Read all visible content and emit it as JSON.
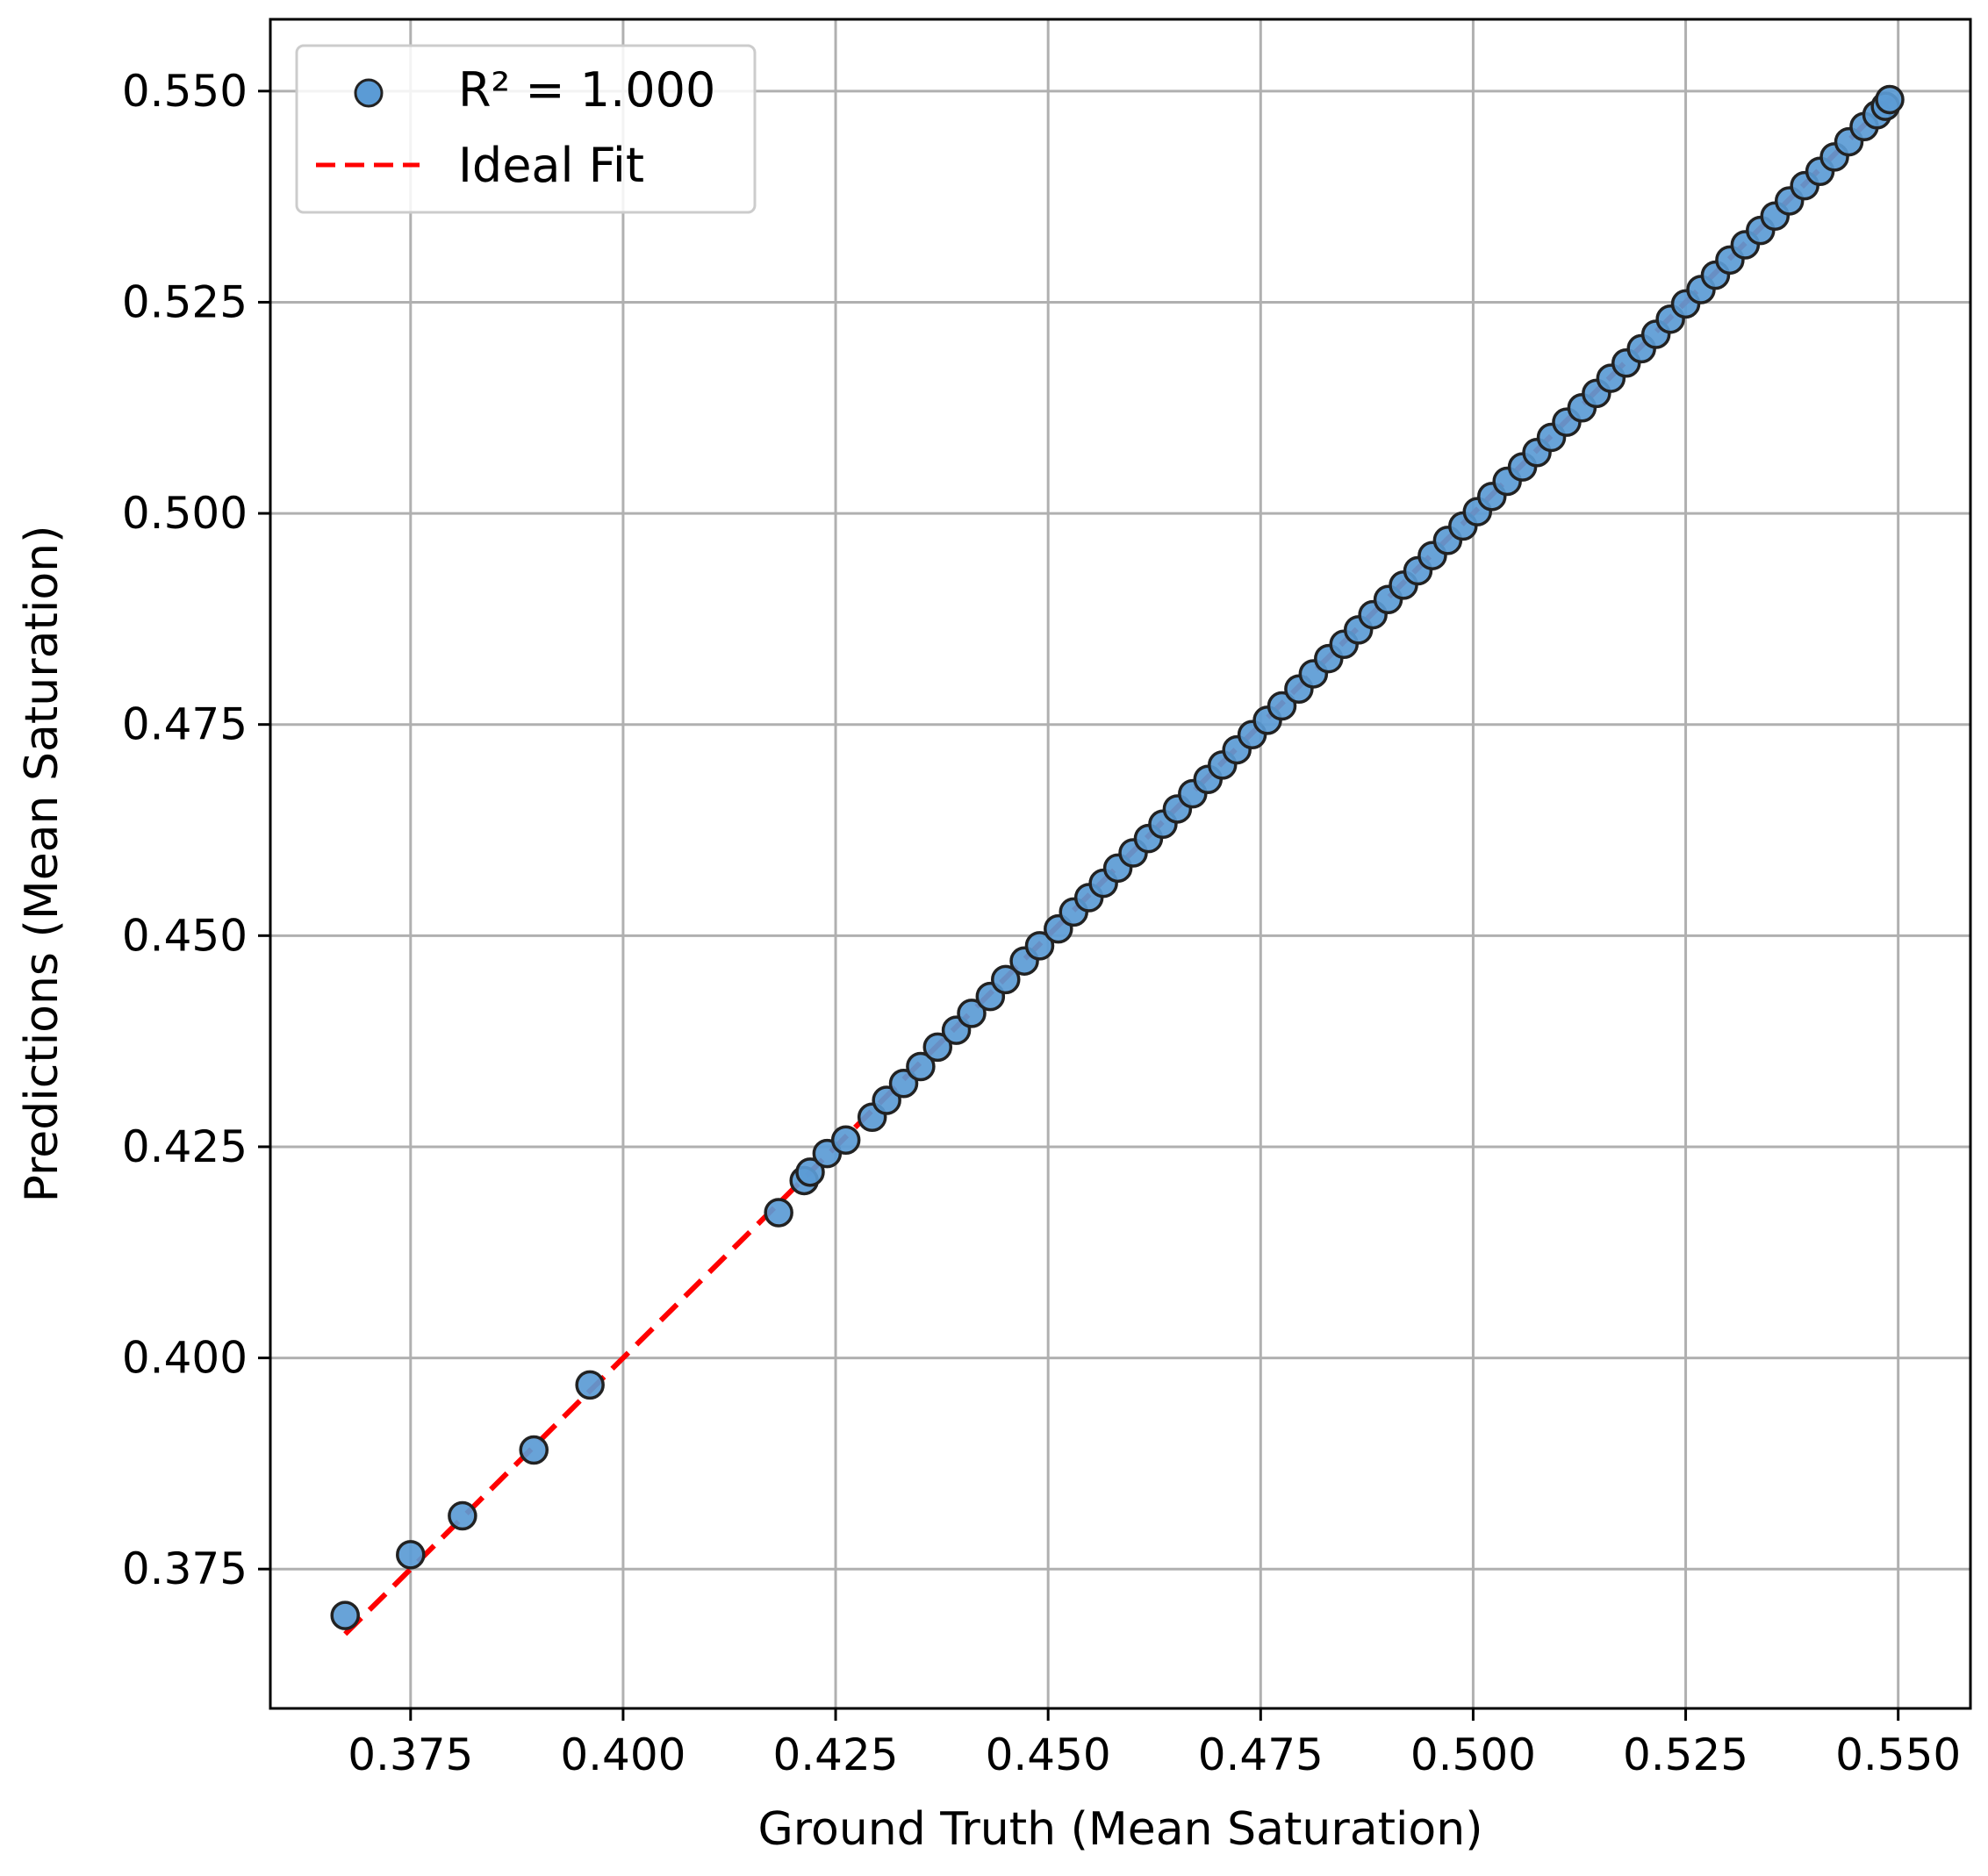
{
  "chart_data": {
    "type": "scatter",
    "xlabel": "Ground Truth (Mean Saturation)",
    "ylabel": "Predictions (Mean Saturation)",
    "xlim": [
      0.3585,
      0.5585
    ],
    "ylim": [
      0.3585,
      0.5585
    ],
    "xticks": [
      "0.375",
      "0.400",
      "0.425",
      "0.450",
      "0.475",
      "0.500",
      "0.525",
      "0.550"
    ],
    "yticks": [
      "0.375",
      "0.400",
      "0.425",
      "0.450",
      "0.475",
      "0.500",
      "0.525",
      "0.550"
    ],
    "grid": true,
    "legend_placement": "top-left",
    "series": [
      {
        "name": "R² = 1.000",
        "kind": "scatter",
        "color": "#5b9bd5",
        "edge_color": "#222222",
        "x": [
          0.3673,
          0.375,
          0.3811,
          0.3895,
          0.3961,
          0.4183,
          0.4213,
          0.422,
          0.424,
          0.4262,
          0.4293,
          0.431,
          0.433,
          0.435,
          0.437,
          0.4392,
          0.441,
          0.4432,
          0.445,
          0.4472,
          0.449,
          0.4512,
          0.453,
          0.4548,
          0.4565,
          0.4582,
          0.46,
          0.4618,
          0.4635,
          0.4652,
          0.467,
          0.4688,
          0.4705,
          0.4722,
          0.474,
          0.4758,
          0.4775,
          0.4795,
          0.4812,
          0.483,
          0.4848,
          0.4865,
          0.4882,
          0.49,
          0.4918,
          0.4935,
          0.4952,
          0.497,
          0.4988,
          0.5005,
          0.5022,
          0.504,
          0.5058,
          0.5075,
          0.5092,
          0.511,
          0.5128,
          0.5145,
          0.5162,
          0.518,
          0.5198,
          0.5215,
          0.5232,
          0.525,
          0.5268,
          0.5285,
          0.5302,
          0.532,
          0.5338,
          0.5355,
          0.5372,
          0.539,
          0.5408,
          0.5425,
          0.5442,
          0.546,
          0.5475,
          0.5485,
          0.549
        ],
        "y": [
          0.3695,
          0.3767,
          0.3813,
          0.3891,
          0.3968,
          0.4172,
          0.421,
          0.422,
          0.4242,
          0.4258,
          0.4285,
          0.4305,
          0.4325,
          0.4345,
          0.4368,
          0.4388,
          0.4408,
          0.4428,
          0.4448,
          0.447,
          0.4488,
          0.4508,
          0.4528,
          0.4545,
          0.4562,
          0.458,
          0.4598,
          0.4615,
          0.4632,
          0.465,
          0.4668,
          0.4685,
          0.4702,
          0.472,
          0.4738,
          0.4755,
          0.4772,
          0.4792,
          0.481,
          0.4828,
          0.4845,
          0.4862,
          0.488,
          0.4898,
          0.4915,
          0.4932,
          0.495,
          0.4968,
          0.4985,
          0.5002,
          0.502,
          0.5038,
          0.5055,
          0.5072,
          0.509,
          0.5108,
          0.5125,
          0.5142,
          0.516,
          0.5178,
          0.5195,
          0.5212,
          0.523,
          0.5248,
          0.5265,
          0.5282,
          0.53,
          0.5318,
          0.5335,
          0.5352,
          0.537,
          0.5388,
          0.5405,
          0.5422,
          0.544,
          0.5458,
          0.5472,
          0.5482,
          0.549
        ]
      },
      {
        "name": "Ideal Fit",
        "kind": "line",
        "style": "dashed",
        "color": "#ff0000",
        "x": [
          0.3673,
          0.5495
        ],
        "y": [
          0.3673,
          0.5495
        ]
      }
    ]
  }
}
